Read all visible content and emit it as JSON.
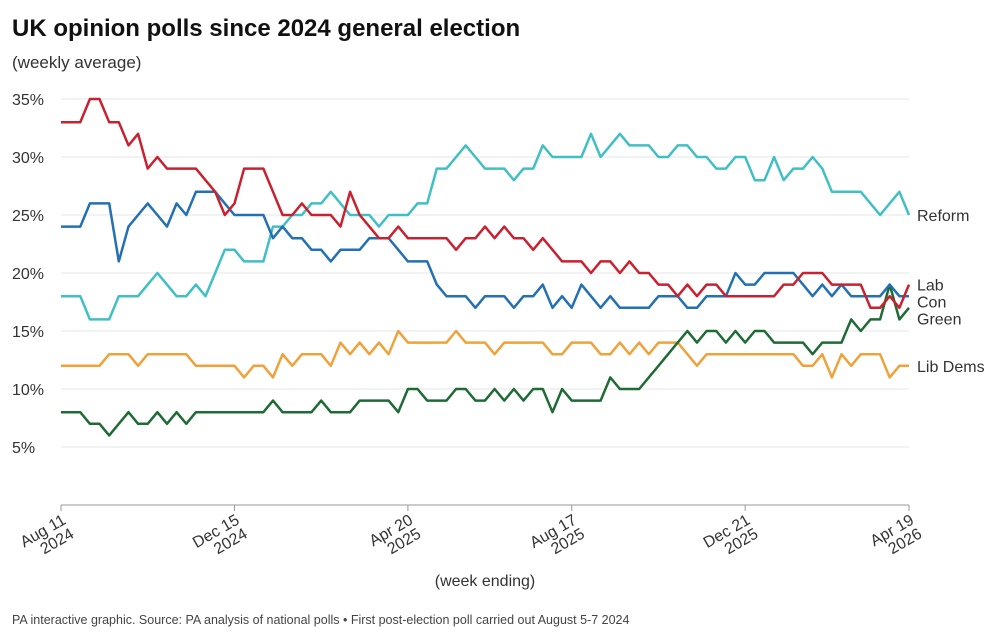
{
  "chart_data": {
    "type": "line",
    "title": "UK opinion polls since 2024 general election",
    "subtitle": "(weekly average)",
    "x_label": "(week ending)",
    "footer": "PA interactive graphic. Source: PA analysis of national polls • First post-election poll carried out August 5-7 2024",
    "x": [
      "2024-08-11",
      "2024-08-18",
      "2024-08-25",
      "2024-09-01",
      "2024-09-08",
      "2024-09-15",
      "2024-09-22",
      "2024-09-29",
      "2024-10-06",
      "2024-10-13",
      "2024-10-20",
      "2024-10-27",
      "2024-11-03",
      "2024-11-10",
      "2024-11-17",
      "2024-11-24",
      "2024-12-01",
      "2024-12-08",
      "2024-12-15",
      "2024-12-22",
      "2024-12-29",
      "2025-01-05",
      "2025-01-12",
      "2025-01-19",
      "2025-01-26",
      "2025-02-02",
      "2025-02-09",
      "2025-02-16",
      "2025-02-23",
      "2025-03-02",
      "2025-03-09",
      "2025-03-16",
      "2025-03-23",
      "2025-03-30",
      "2025-04-06",
      "2025-04-13",
      "2025-04-20",
      "2025-04-27",
      "2025-05-04",
      "2025-05-11",
      "2025-05-18",
      "2025-05-25",
      "2025-06-01",
      "2025-06-08",
      "2025-06-15",
      "2025-06-22",
      "2025-06-29",
      "2025-07-06",
      "2025-07-13",
      "2025-07-20",
      "2025-07-27",
      "2025-08-03",
      "2025-08-10",
      "2025-08-17",
      "2025-08-24",
      "2025-08-31",
      "2025-09-07",
      "2025-09-14",
      "2025-09-21",
      "2025-09-28",
      "2025-10-05",
      "2025-10-12",
      "2025-10-19",
      "2025-10-26",
      "2025-11-02",
      "2025-11-09",
      "2025-11-16",
      "2025-11-23",
      "2025-11-30",
      "2025-12-07",
      "2025-12-14",
      "2025-12-21",
      "2025-12-28",
      "2026-01-04",
      "2026-01-11",
      "2026-01-18",
      "2026-01-25",
      "2026-02-01",
      "2026-02-08",
      "2026-02-15",
      "2026-02-22",
      "2026-03-01",
      "2026-03-08",
      "2026-03-15",
      "2026-03-22",
      "2026-03-29",
      "2026-04-05",
      "2026-04-12",
      "2026-04-19"
    ],
    "xlim": [
      "2024-08-11",
      "2026-04-19"
    ],
    "xticks": [
      {
        "value": "2024-08-11",
        "label": "Aug 11 2024"
      },
      {
        "value": "2024-12-15",
        "label": "Dec 15 2024"
      },
      {
        "value": "2025-04-20",
        "label": "Apr 20 2025"
      },
      {
        "value": "2025-08-17",
        "label": "Aug 17 2025"
      },
      {
        "value": "2025-12-21",
        "label": "Dec 21 2025"
      },
      {
        "value": "2026-04-19",
        "label": "Apr 19 2026"
      }
    ],
    "ylim": [
      0,
      35
    ],
    "yticks": [
      {
        "value": 5,
        "label": "5%"
      },
      {
        "value": 10,
        "label": "10%"
      },
      {
        "value": 15,
        "label": "15%"
      },
      {
        "value": 20,
        "label": "20%"
      },
      {
        "value": 25,
        "label": "25%"
      },
      {
        "value": 30,
        "label": "30%"
      },
      {
        "value": 35,
        "label": "35%"
      }
    ],
    "grid": true,
    "series": [
      {
        "name": "Reform",
        "color": "#40bfc4",
        "values": [
          18,
          18,
          18,
          16,
          16,
          16,
          18,
          18,
          18,
          19,
          20,
          19,
          18,
          18,
          19,
          18,
          20,
          22,
          22,
          21,
          21,
          21,
          24,
          24,
          25,
          25,
          26,
          26,
          27,
          26,
          25,
          25,
          25,
          24,
          25,
          25,
          25,
          26,
          26,
          29,
          29,
          30,
          31,
          30,
          29,
          29,
          29,
          28,
          29,
          29,
          31,
          30,
          30,
          30,
          30,
          32,
          30,
          31,
          32,
          31,
          31,
          31,
          30,
          30,
          31,
          31,
          30,
          30,
          29,
          29,
          30,
          30,
          28,
          28,
          30,
          28,
          29,
          29,
          30,
          29,
          27,
          27,
          27,
          27,
          26,
          25,
          26,
          27,
          25
        ]
      },
      {
        "name": "Lib Dems",
        "color": "#f0a23a",
        "values": [
          12,
          12,
          12,
          12,
          12,
          13,
          13,
          13,
          12,
          13,
          13,
          13,
          13,
          13,
          12,
          12,
          12,
          12,
          12,
          11,
          12,
          12,
          11,
          13,
          12,
          13,
          13,
          13,
          12,
          14,
          13,
          14,
          13,
          14,
          13,
          15,
          14,
          14,
          14,
          14,
          14,
          15,
          14,
          14,
          14,
          13,
          14,
          14,
          14,
          14,
          14,
          13,
          13,
          14,
          14,
          14,
          13,
          13,
          14,
          13,
          14,
          13,
          14,
          14,
          14,
          13,
          12,
          13,
          13,
          13,
          13,
          13,
          13,
          13,
          13,
          13,
          13,
          12,
          12,
          13,
          11,
          13,
          12,
          13,
          13,
          13,
          11,
          12,
          12
        ]
      },
      {
        "name": "Green",
        "color": "#1f6b36",
        "values": [
          8,
          8,
          8,
          7,
          7,
          6,
          7,
          8,
          7,
          7,
          8,
          7,
          8,
          7,
          8,
          8,
          8,
          8,
          8,
          8,
          8,
          8,
          9,
          8,
          8,
          8,
          8,
          9,
          8,
          8,
          8,
          9,
          9,
          9,
          9,
          8,
          10,
          10,
          9,
          9,
          9,
          10,
          10,
          9,
          9,
          10,
          9,
          10,
          9,
          10,
          10,
          8,
          10,
          9,
          9,
          9,
          9,
          11,
          10,
          10,
          10,
          11,
          12,
          13,
          14,
          15,
          14,
          15,
          15,
          14,
          15,
          14,
          15,
          15,
          14,
          14,
          14,
          14,
          13,
          14,
          14,
          14,
          16,
          15,
          16,
          16,
          19,
          16,
          17
        ]
      },
      {
        "name": "Con",
        "color": "#2370b3",
        "values": [
          24,
          24,
          24,
          26,
          26,
          26,
          21,
          24,
          25,
          26,
          25,
          24,
          26,
          25,
          27,
          27,
          27,
          26,
          25,
          25,
          25,
          25,
          23,
          24,
          23,
          23,
          22,
          22,
          21,
          22,
          22,
          22,
          23,
          23,
          23,
          22,
          21,
          21,
          21,
          19,
          18,
          18,
          18,
          17,
          18,
          18,
          18,
          17,
          18,
          18,
          19,
          17,
          18,
          17,
          19,
          18,
          17,
          18,
          17,
          17,
          17,
          17,
          18,
          18,
          18,
          17,
          17,
          18,
          18,
          18,
          20,
          19,
          19,
          20,
          20,
          20,
          20,
          19,
          18,
          19,
          18,
          19,
          18,
          18,
          18,
          18,
          19,
          18,
          18
        ]
      },
      {
        "name": "Lab",
        "color": "#c9212f",
        "values": [
          33,
          33,
          33,
          35,
          35,
          33,
          33,
          31,
          32,
          29,
          30,
          29,
          29,
          29,
          29,
          28,
          27,
          25,
          26,
          29,
          29,
          29,
          27,
          25,
          25,
          26,
          25,
          25,
          25,
          24,
          27,
          25,
          24,
          23,
          23,
          24,
          23,
          23,
          23,
          23,
          23,
          22,
          23,
          23,
          24,
          23,
          24,
          23,
          23,
          22,
          23,
          22,
          21,
          21,
          21,
          20,
          21,
          21,
          20,
          21,
          20,
          20,
          19,
          19,
          18,
          19,
          18,
          19,
          19,
          18,
          18,
          18,
          18,
          18,
          18,
          19,
          19,
          20,
          20,
          20,
          19,
          19,
          19,
          19,
          17,
          17,
          18,
          17,
          19
        ]
      }
    ]
  }
}
